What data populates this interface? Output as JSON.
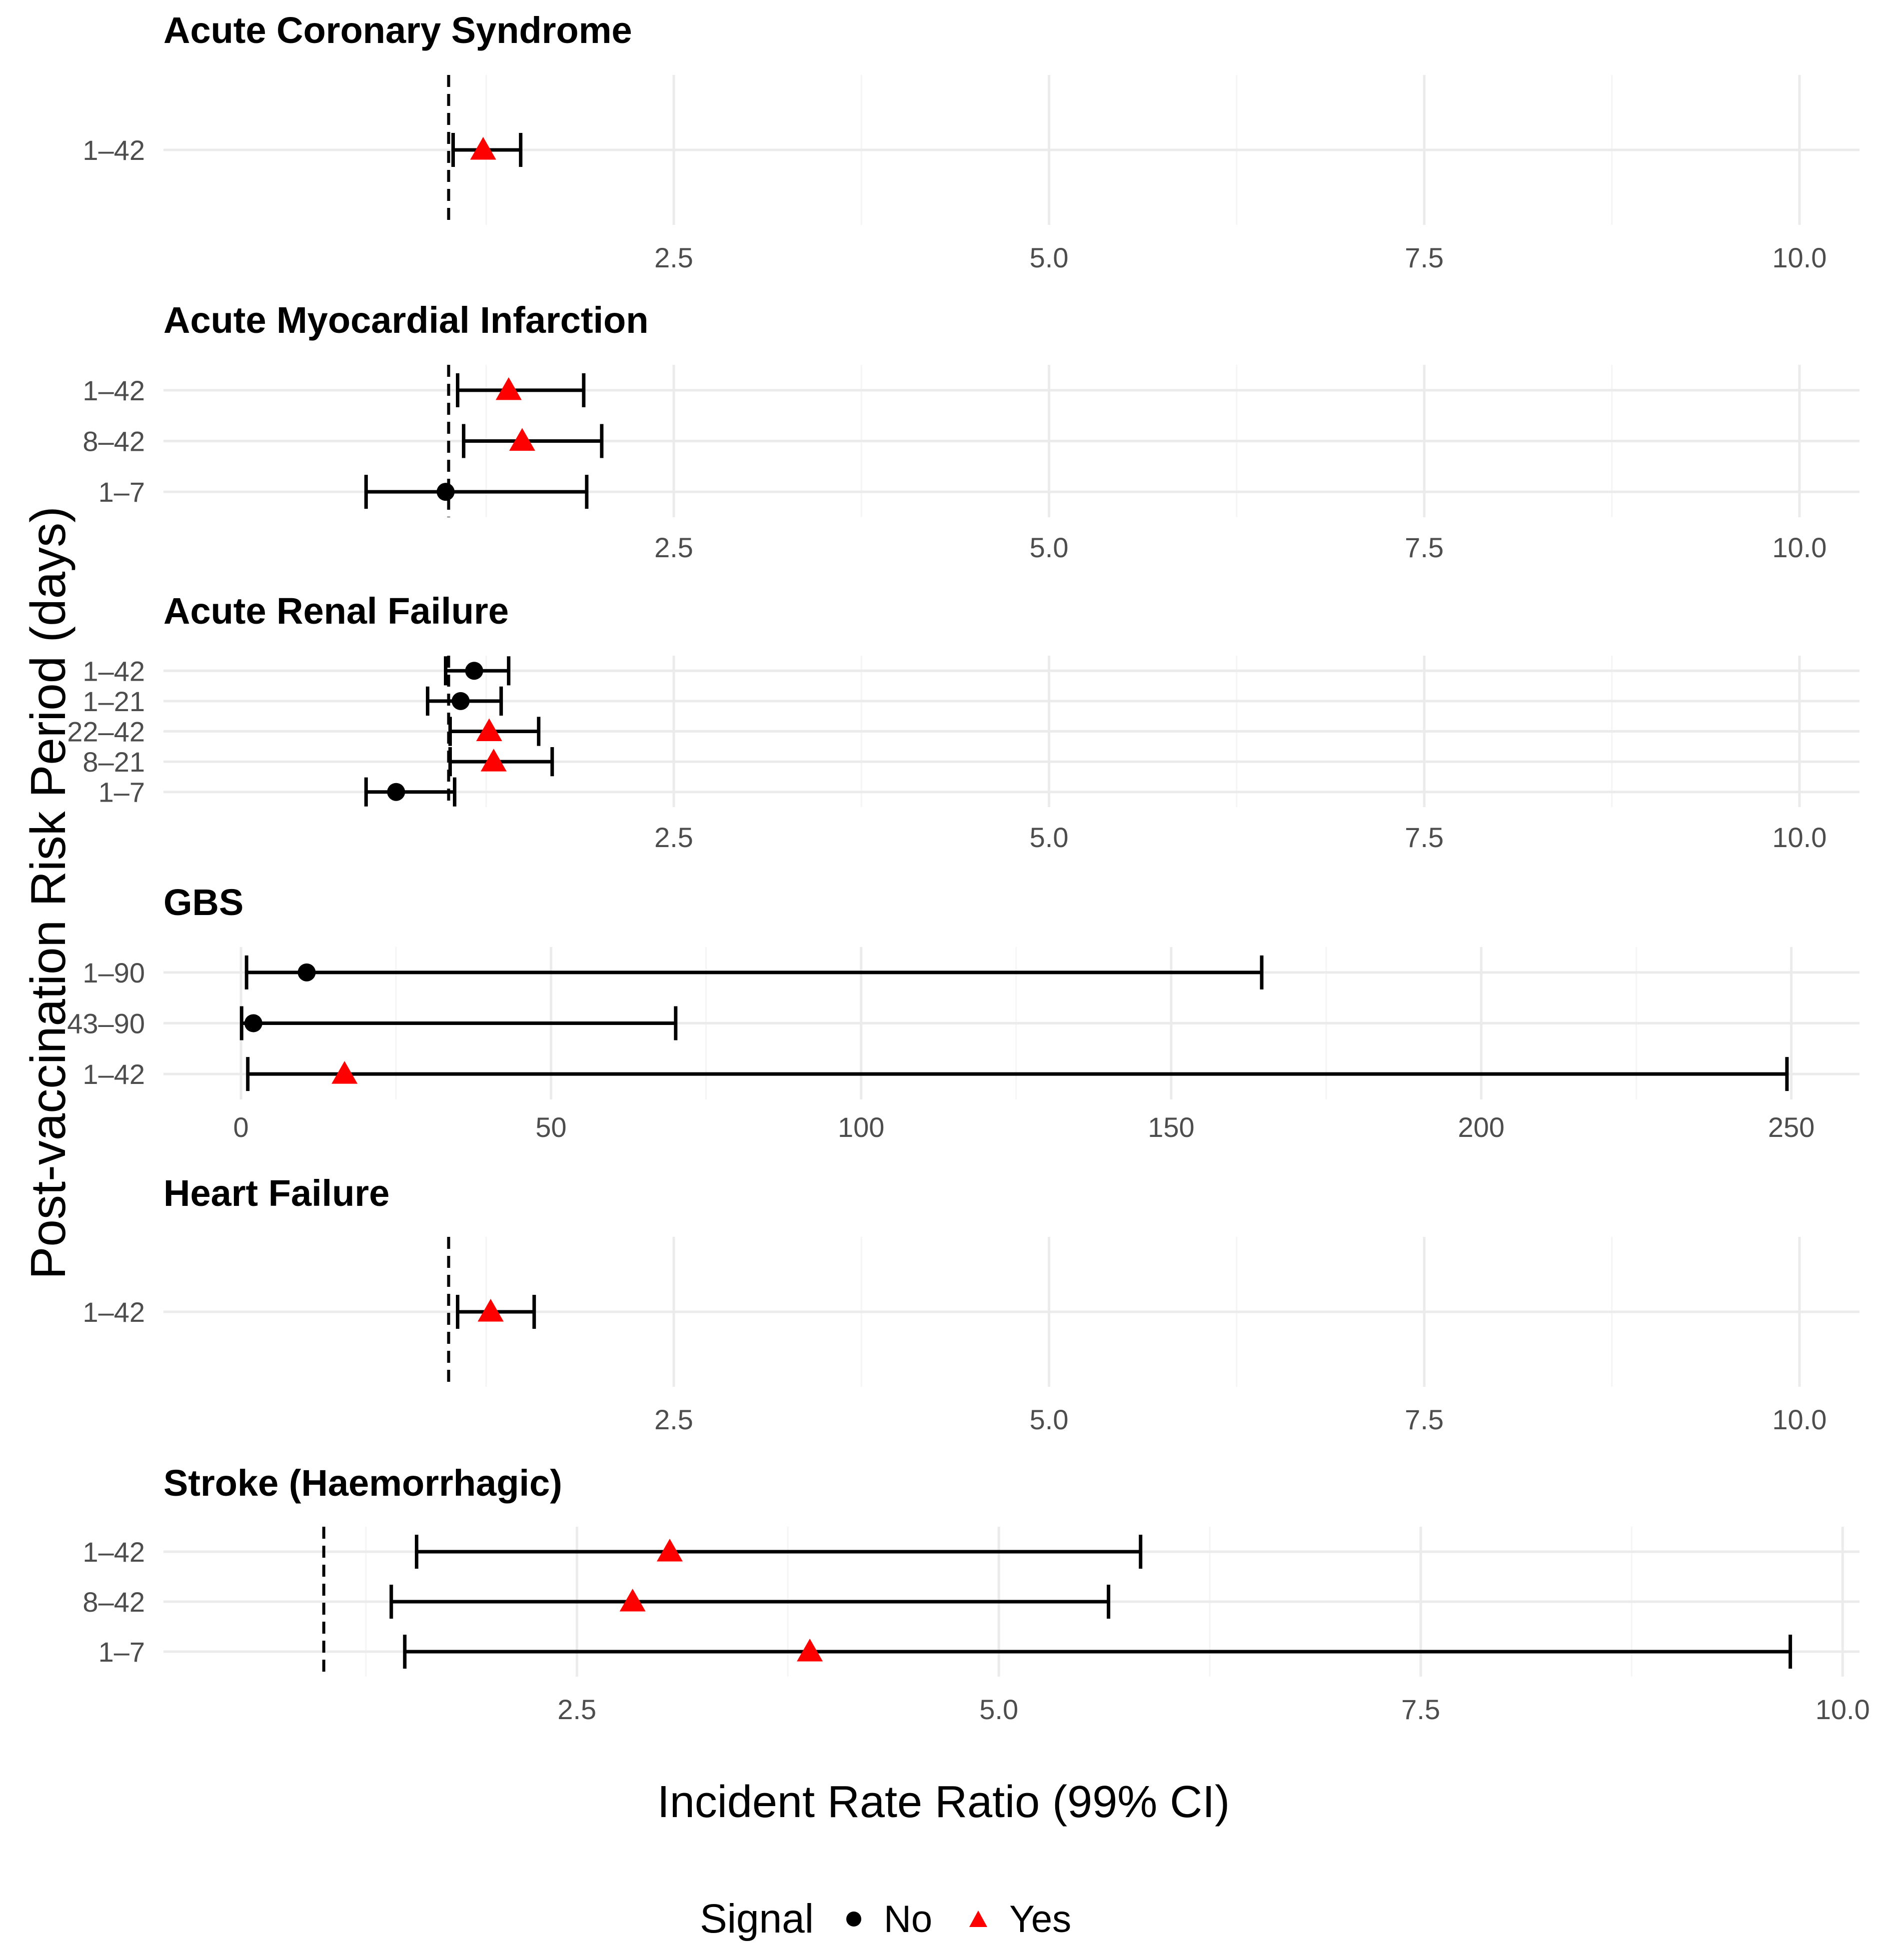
{
  "axis_labels": {
    "y": "Post-vaccination Risk Period (days)",
    "x": "Incident Rate Ratio (99% CI)"
  },
  "legend": {
    "title": "Signal",
    "items": [
      {
        "label": "No",
        "shape": "circle",
        "color": "#000000"
      },
      {
        "label": "Yes",
        "shape": "triangle",
        "color": "#ff0000"
      }
    ]
  },
  "colors": {
    "no": "#000000",
    "yes": "#ff0000",
    "grid_major": "#ebebeb",
    "grid_minor": "#f5f5f5"
  },
  "chart_data": [
    {
      "type": "forest",
      "title": "Acute Coronary Syndrome",
      "xlim": [
        -0.9,
        10.4
      ],
      "xticks": [
        2.5,
        5.0,
        7.5,
        10.0
      ],
      "xtick_labels": [
        "2.5",
        "5.0",
        "7.5",
        "10.0"
      ],
      "reference_line": 1,
      "rows": [
        {
          "label": "1–42",
          "est": 1.23,
          "lo": 1.03,
          "hi": 1.48,
          "signal": "Yes"
        }
      ]
    },
    {
      "type": "forest",
      "title": "Acute Myocardial Infarction",
      "xlim": [
        -0.9,
        10.4
      ],
      "xticks": [
        2.5,
        5.0,
        7.5,
        10.0
      ],
      "xtick_labels": [
        "2.5",
        "5.0",
        "7.5",
        "10.0"
      ],
      "reference_line": 1,
      "rows": [
        {
          "label": "1–42",
          "est": 1.4,
          "lo": 1.06,
          "hi": 1.9,
          "signal": "Yes"
        },
        {
          "label": "8–42",
          "est": 1.49,
          "lo": 1.1,
          "hi": 2.02,
          "signal": "Yes"
        },
        {
          "label": "1–7",
          "est": 0.98,
          "lo": 0.45,
          "hi": 1.92,
          "signal": "No"
        }
      ]
    },
    {
      "type": "forest",
      "title": "Acute Renal Failure",
      "xlim": [
        -0.9,
        10.4
      ],
      "xticks": [
        2.5,
        5.0,
        7.5,
        10.0
      ],
      "xtick_labels": [
        "2.5",
        "5.0",
        "7.5",
        "10.0"
      ],
      "reference_line": 1,
      "rows": [
        {
          "label": "1–42",
          "est": 1.17,
          "lo": 0.98,
          "hi": 1.4,
          "signal": "No"
        },
        {
          "label": "1–21",
          "est": 1.08,
          "lo": 0.86,
          "hi": 1.35,
          "signal": "No"
        },
        {
          "label": "22–42",
          "est": 1.27,
          "lo": 1.01,
          "hi": 1.6,
          "signal": "Yes"
        },
        {
          "label": "8–21",
          "est": 1.3,
          "lo": 1.01,
          "hi": 1.69,
          "signal": "Yes"
        },
        {
          "label": "1–7",
          "est": 0.65,
          "lo": 0.45,
          "hi": 1.04,
          "signal": "No"
        }
      ]
    },
    {
      "type": "forest",
      "title": "GBS",
      "xlim": [
        -12.5,
        261
      ],
      "xticks": [
        0,
        50,
        100,
        150,
        200,
        250
      ],
      "xtick_labels": [
        "0",
        "50",
        "100",
        "150",
        "200",
        "250"
      ],
      "reference_line": null,
      "rows": [
        {
          "label": "1–90",
          "est": 10.6,
          "lo": 0.9,
          "hi": 164.6,
          "signal": "No"
        },
        {
          "label": "43–90",
          "est": 2.0,
          "lo": 0.1,
          "hi": 70.1,
          "signal": "No"
        },
        {
          "label": "1–42",
          "est": 16.7,
          "lo": 1.1,
          "hi": 249.3,
          "signal": "Yes"
        }
      ]
    },
    {
      "type": "forest",
      "title": "Heart Failure",
      "xlim": [
        -0.9,
        10.4
      ],
      "xticks": [
        2.5,
        5.0,
        7.5,
        10.0
      ],
      "xtick_labels": [
        "2.5",
        "5.0",
        "7.5",
        "10.0"
      ],
      "reference_line": 1,
      "rows": [
        {
          "label": "1–42",
          "est": 1.28,
          "lo": 1.06,
          "hi": 1.57,
          "signal": "Yes"
        }
      ]
    },
    {
      "type": "forest",
      "title": "Stroke (Haemorrhagic)",
      "xlim": [
        0.05,
        10.1
      ],
      "xticks": [
        2.5,
        5.0,
        7.5,
        10.0
      ],
      "xtick_labels": [
        "2.5",
        "5.0",
        "7.5",
        "10.0"
      ],
      "reference_line": 1,
      "rows": [
        {
          "label": "1–42",
          "est": 3.05,
          "lo": 1.55,
          "hi": 5.84,
          "signal": "Yes"
        },
        {
          "label": "8–42",
          "est": 2.83,
          "lo": 1.4,
          "hi": 5.65,
          "signal": "Yes"
        },
        {
          "label": "1–7",
          "est": 3.88,
          "lo": 1.48,
          "hi": 9.69,
          "signal": "Yes"
        }
      ]
    }
  ]
}
